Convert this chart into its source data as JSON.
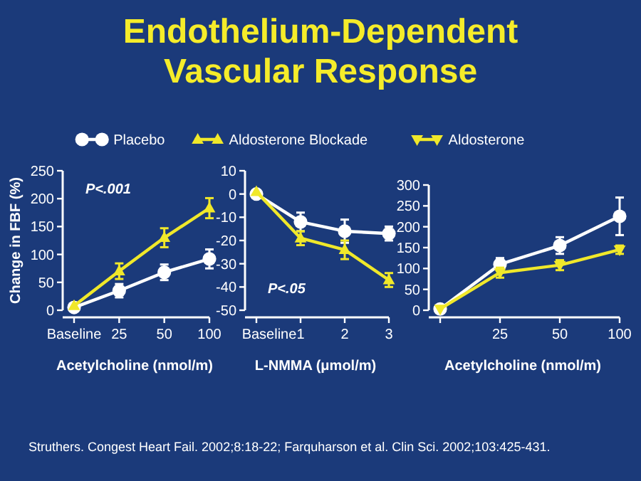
{
  "chart_data": [
    {
      "type": "line",
      "title": "Endothelium-Dependent Vascular Response",
      "categories": [
        "Baseline",
        "25",
        "50",
        "100"
      ],
      "ylabel": "Change in FBF (%)",
      "xlabel": "Acetylcholine (nmol/m)",
      "ylim": [
        0,
        250
      ],
      "yticks": [
        0,
        50,
        100,
        150,
        200,
        250
      ],
      "legend": "top",
      "annotations": [
        "P<.001"
      ],
      "series": [
        {
          "name": "Placebo",
          "color": "#ffffff",
          "marker": "circle",
          "values": [
            5,
            35,
            68,
            92
          ],
          "errors": [
            null,
            12,
            14,
            17
          ]
        },
        {
          "name": "Aldosterone Blockade",
          "color": "#f0e82a",
          "marker": "triangle",
          "values": [
            8,
            70,
            130,
            183
          ],
          "errors": [
            null,
            14,
            17,
            18
          ]
        }
      ]
    },
    {
      "type": "line",
      "categories": [
        "Baseline",
        "1",
        "2",
        "3"
      ],
      "xlabel": "L-NMMA (μmol/m)",
      "legend": "top",
      "ylim": [
        -50,
        10
      ],
      "yticks": [
        -50,
        -40,
        -30,
        -20,
        -10,
        0,
        10
      ],
      "annotations": [
        "P<.05"
      ],
      "series": [
        {
          "name": "Placebo",
          "color": "#ffffff",
          "marker": "circle",
          "values": [
            0,
            -12,
            -16,
            -17
          ],
          "errors": [
            null,
            4,
            5,
            3
          ]
        },
        {
          "name": "Aldosterone Blockade",
          "color": "#f0e82a",
          "marker": "triangle",
          "values": [
            1,
            -19,
            -24,
            -37
          ],
          "errors": [
            null,
            3,
            4,
            3
          ]
        }
      ]
    },
    {
      "type": "line",
      "categories": [
        null,
        "25",
        "50",
        "100"
      ],
      "xlabel": "Acetylcholine (nmol/m)",
      "ylim": [
        0,
        300
      ],
      "yticks": [
        0,
        50,
        100,
        150,
        200,
        250,
        300
      ],
      "legend": "top",
      "annotations": [
        "Struthers. Congest Heart Fail. 2002;8:18-22; Farquharson et al. Clin Sci. 2002;103:425-431."
      ],
      "series": [
        {
          "name": "Placebo",
          "color": "#ffffff",
          "marker": "circle",
          "values": [
            3,
            110,
            155,
            225
          ],
          "errors": [
            null,
            15,
            20,
            45
          ]
        },
        {
          "name": "Aldosterone",
          "color": "#f0e82a",
          "marker": "triangle-down",
          "values": [
            3,
            90,
            108,
            145
          ],
          "errors": [
            null,
            12,
            12,
            10
          ]
        }
      ]
    }
  ]
}
